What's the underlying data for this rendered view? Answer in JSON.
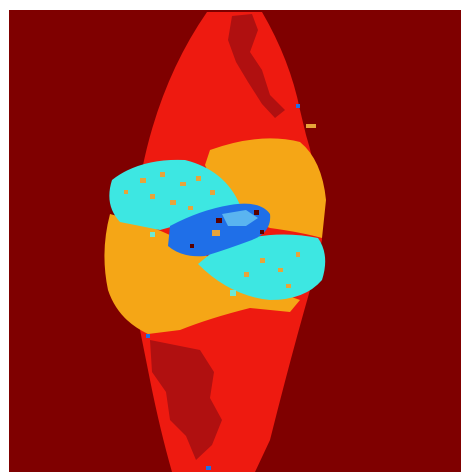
{
  "image": {
    "kind": "segmentation-map",
    "colors": {
      "background": "#7f0000",
      "outer_region": "#ee1a10",
      "outer_region_dark": "#b01010",
      "upper_band": "#3de7e2",
      "lower_band": "#f5a616",
      "center_blob": "#1f6fe8",
      "center_blob_light": "#5ab4f0",
      "speckle_orange": "#e7a43a",
      "speckle_cyan": "#6fe8d6",
      "dark_spot": "#5a0000",
      "frame": "#ffffff"
    }
  }
}
